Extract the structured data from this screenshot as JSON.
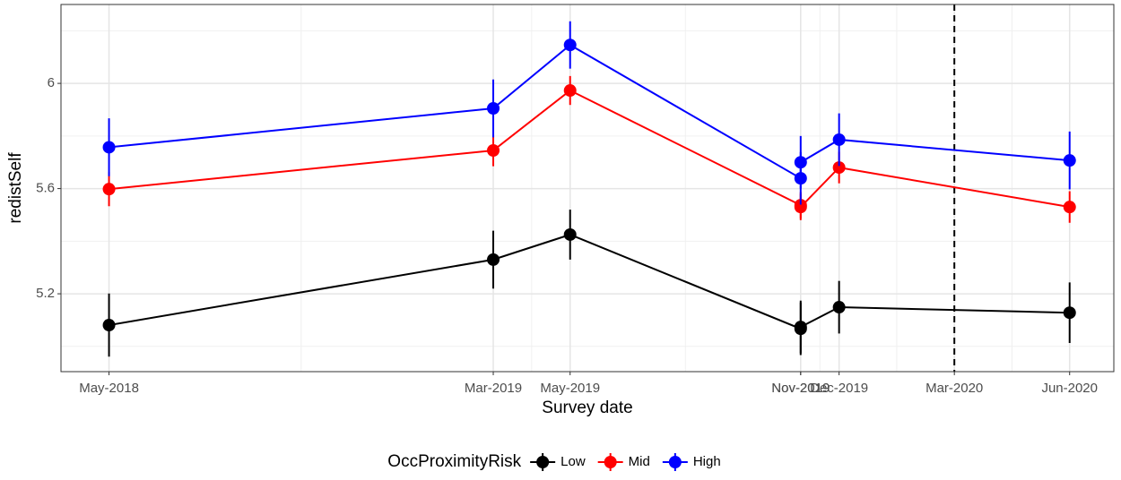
{
  "chart_data": {
    "type": "line",
    "x": [
      "May-2018",
      "Mar-2019",
      "May-2019",
      "Nov-2019",
      "Nov-2019",
      "Dec-2019",
      "Jun-2020"
    ],
    "series": [
      {
        "name": "Low",
        "color": "#000000",
        "values": [
          5.081,
          5.33,
          5.425,
          5.067,
          5.074,
          5.149,
          5.128
        ],
        "errors": [
          0.12,
          0.11,
          0.095,
          0.1,
          0.1,
          0.1,
          0.115
        ]
      },
      {
        "name": "Mid",
        "color": "#ff0000",
        "values": [
          5.598,
          5.745,
          5.973,
          5.537,
          5.53,
          5.68,
          5.53
        ],
        "errors": [
          0.065,
          0.06,
          0.055,
          0.05,
          0.05,
          0.06,
          0.06
        ]
      },
      {
        "name": "High",
        "color": "#0000ff",
        "values": [
          5.757,
          5.905,
          6.146,
          5.639,
          5.7,
          5.786,
          5.707
        ],
        "errors": [
          0.11,
          0.11,
          0.09,
          0.1,
          0.1,
          0.1,
          0.11
        ]
      }
    ],
    "xlabel": "Survey date",
    "ylabel": "redistSelf",
    "legend_title": "OccProximityRisk",
    "xlim": [
      "Apr-2018",
      "Jul-2020"
    ],
    "xticks": [
      "May-2018",
      "Mar-2019",
      "May-2019",
      "Nov-2019",
      "Nov-2019",
      "Dec-2019",
      "Mar-2020",
      "Jun-2020"
    ],
    "ylim": [
      4.904,
      6.3
    ],
    "yticks": [
      5.2,
      5.6,
      6.0
    ],
    "vline": "Mar-2020",
    "grid": true,
    "legend": "bottom"
  }
}
